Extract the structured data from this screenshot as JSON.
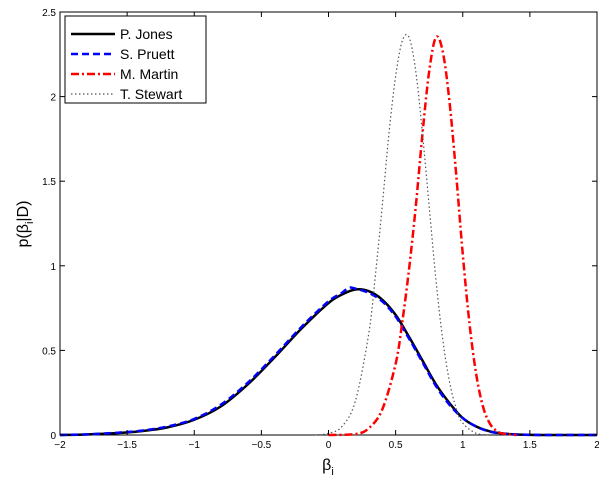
{
  "chart_data": {
    "type": "line",
    "xlabel": "β",
    "xlabel_sub": "i",
    "ylabel_parts": [
      "p(β",
      "i",
      "|D)"
    ],
    "xlim": [
      -2,
      2
    ],
    "ylim": [
      0,
      2.5
    ],
    "xticks": [
      -2,
      -1.5,
      -1,
      -0.5,
      0,
      0.5,
      1,
      1.5,
      2
    ],
    "xtick_labels": [
      "−2",
      "−1.5",
      "−1",
      "−0.5",
      "0",
      "0.5",
      "1",
      "1.5",
      "2"
    ],
    "yticks": [
      0,
      0.5,
      1,
      1.5,
      2,
      2.5
    ],
    "ytick_labels": [
      "0",
      "0.5",
      "1",
      "1.5",
      "2",
      "2.5"
    ],
    "grid": false,
    "legend_position": "top-left",
    "series": [
      {
        "name": "P. Jones",
        "color": "#000000",
        "dash": "solid",
        "x": [
          -2,
          -1.8,
          -1.6,
          -1.4,
          -1.2,
          -1.0,
          -0.8,
          -0.6,
          -0.4,
          -0.2,
          0.0,
          0.1,
          0.2,
          0.3,
          0.4,
          0.5,
          0.6,
          0.7,
          0.8,
          0.9,
          1.0,
          1.1,
          1.2,
          1.3,
          1.4,
          1.6,
          1.8,
          2.0
        ],
        "y": [
          0.0,
          0.003,
          0.01,
          0.022,
          0.045,
          0.09,
          0.17,
          0.3,
          0.46,
          0.63,
          0.78,
          0.83,
          0.86,
          0.85,
          0.8,
          0.71,
          0.58,
          0.44,
          0.3,
          0.19,
          0.1,
          0.05,
          0.022,
          0.009,
          0.003,
          0.0,
          0.0,
          0.0
        ]
      },
      {
        "name": "S. Pruett",
        "color": "#0000ff",
        "dash": "dashed",
        "x": [
          -2,
          -1.8,
          -1.6,
          -1.4,
          -1.2,
          -1.0,
          -0.8,
          -0.6,
          -0.4,
          -0.2,
          0.0,
          0.1,
          0.15,
          0.2,
          0.3,
          0.4,
          0.5,
          0.6,
          0.7,
          0.8,
          0.9,
          1.0,
          1.1,
          1.2,
          1.3,
          1.4,
          1.6,
          1.8,
          2.0
        ],
        "y": [
          0.0,
          0.004,
          0.012,
          0.025,
          0.05,
          0.095,
          0.18,
          0.31,
          0.47,
          0.64,
          0.79,
          0.84,
          0.87,
          0.865,
          0.84,
          0.79,
          0.7,
          0.57,
          0.43,
          0.29,
          0.18,
          0.1,
          0.05,
          0.02,
          0.008,
          0.003,
          0.0,
          0.0,
          0.0
        ]
      },
      {
        "name": "M. Martin",
        "color": "#ff0000",
        "dash": "dashdot",
        "x": [
          0.0,
          0.2,
          0.3,
          0.4,
          0.5,
          0.55,
          0.6,
          0.65,
          0.7,
          0.75,
          0.8,
          0.85,
          0.9,
          0.95,
          1.0,
          1.05,
          1.1,
          1.15,
          1.2,
          1.25,
          1.3,
          1.4
        ],
        "y": [
          0.0,
          0.005,
          0.04,
          0.15,
          0.42,
          0.67,
          0.98,
          1.35,
          1.78,
          2.15,
          2.35,
          2.27,
          1.98,
          1.55,
          1.07,
          0.66,
          0.36,
          0.17,
          0.07,
          0.025,
          0.008,
          0.0
        ]
      },
      {
        "name": "T. Stewart",
        "color": "#555555",
        "dash": "dotted",
        "x": [
          -0.1,
          0.0,
          0.1,
          0.2,
          0.3,
          0.35,
          0.4,
          0.45,
          0.5,
          0.55,
          0.6,
          0.65,
          0.7,
          0.75,
          0.8,
          0.85,
          0.9,
          0.95,
          1.0,
          1.1,
          1.2
        ],
        "y": [
          0.0,
          0.01,
          0.05,
          0.2,
          0.6,
          0.95,
          1.35,
          1.78,
          2.12,
          2.33,
          2.35,
          2.15,
          1.78,
          1.35,
          0.92,
          0.57,
          0.32,
          0.16,
          0.07,
          0.01,
          0.0
        ]
      }
    ]
  }
}
